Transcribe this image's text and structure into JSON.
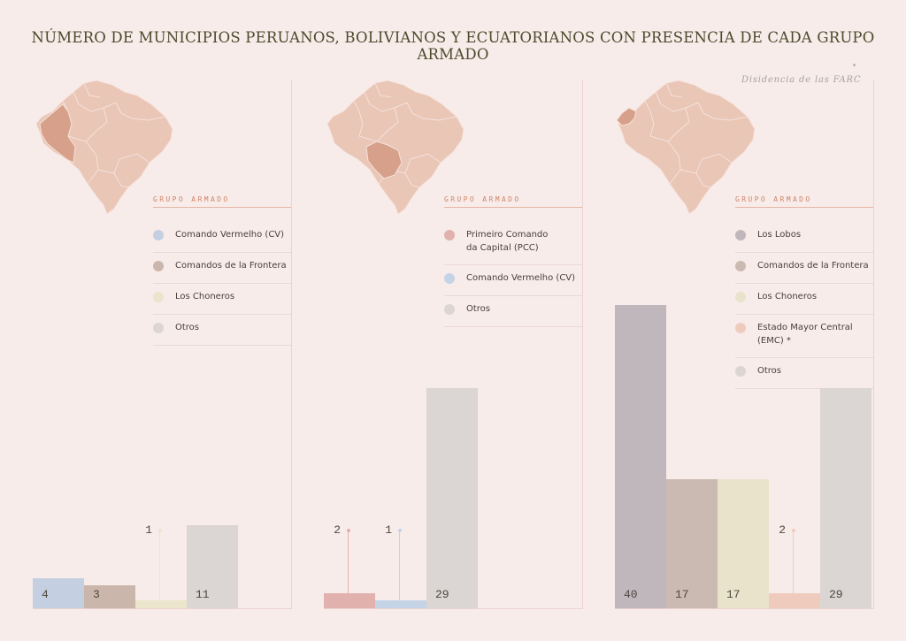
{
  "title": "NÚMERO DE MUNICIPIOS PERUANOS, BOLIVIANOS Y ECUATORIANOS CON PRESENCIA DE CADA GRUPO ARMADO",
  "footnote": "Disidencia de las FARC",
  "colors": {
    "background": "#f8ecea",
    "map_base": "#e9c6b6",
    "map_highlight": "#d6a08b",
    "accent": "#cf8467"
  },
  "chart_data": [
    {
      "type": "bar",
      "country_highlight": "Perú",
      "legend_title": "GRUPO ARMADO",
      "categories": [
        "Comando Vermelho (CV)",
        "Comandos de la Frontera",
        "Los Choneros",
        "Otros"
      ],
      "values": [
        4,
        3,
        1,
        11
      ],
      "value_labels": [
        "4",
        "3",
        "1",
        "11"
      ],
      "colors": [
        "#c5cfe2",
        "#cbb6ab",
        "#ebe5cc",
        "#dbd5d3"
      ],
      "ylim": [
        0,
        40
      ]
    },
    {
      "type": "bar",
      "country_highlight": "Bolivia",
      "legend_title": "GRUPO ARMADO",
      "categories": [
        "Primeiro Comando da Capital (PCC)",
        "Comando Vermelho (CV)",
        "Otros"
      ],
      "legend_lines": [
        [
          "Primeiro Comando",
          "da Capital (PCC)"
        ],
        [
          "Comando Vermelho (CV)"
        ],
        [
          "Otros"
        ]
      ],
      "values": [
        2,
        1,
        29
      ],
      "value_labels": [
        "2",
        "1",
        "29"
      ],
      "colors": [
        "#e1b1ad",
        "#c5d3e7",
        "#dbd5d3"
      ],
      "ylim": [
        0,
        40
      ]
    },
    {
      "type": "bar",
      "country_highlight": "Ecuador",
      "legend_title": "GRUPO ARMADO",
      "categories": [
        "Los Lobos",
        "Comandos de la Frontera",
        "Los Choneros",
        "Estado Mayor Central (EMC) *",
        "Otros"
      ],
      "legend_lines": [
        [
          "Los Lobos"
        ],
        [
          "Comandos de la Frontera"
        ],
        [
          "Los Choneros"
        ],
        [
          "Estado Mayor Central",
          "(EMC) *"
        ],
        [
          "Otros"
        ]
      ],
      "values": [
        40,
        17,
        17,
        2,
        29
      ],
      "value_labels": [
        "40",
        "17",
        "17",
        "2",
        "29"
      ],
      "colors": [
        "#bfb7bb",
        "#cbbab1",
        "#e9e3cc",
        "#efcbbd",
        "#dbd5d3"
      ],
      "ylim": [
        0,
        40
      ]
    }
  ]
}
